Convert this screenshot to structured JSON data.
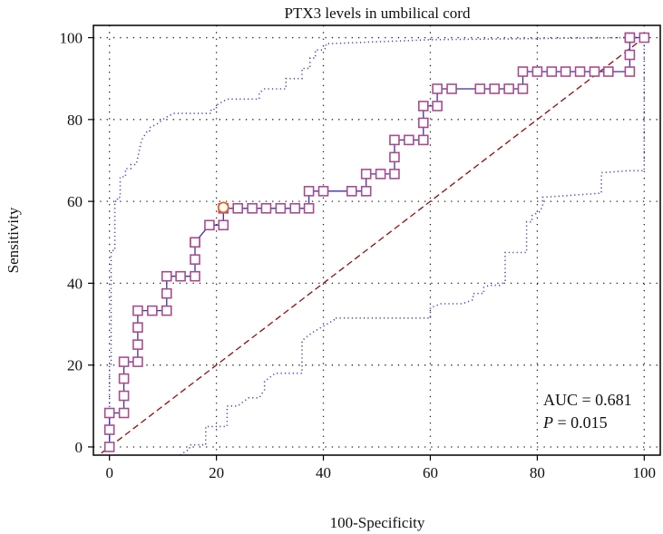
{
  "chart_data": {
    "type": "line",
    "title": "PTX3 levels in umbilical cord",
    "xlabel": "100-Specificity",
    "ylabel": "Sensitivity",
    "xlim": [
      -3,
      103
    ],
    "ylim": [
      -2,
      103
    ],
    "xticks": [
      0,
      20,
      40,
      60,
      80,
      100
    ],
    "yticks": [
      0,
      20,
      40,
      60,
      80,
      100
    ],
    "grid": true,
    "annotations": {
      "auc": "AUC = 0.681",
      "p_label": "P",
      "p_value": " = 0.015"
    },
    "optimal_point": [
      21.3,
      58.5
    ],
    "series": [
      {
        "role": "roc",
        "color": "#3b2fa0",
        "marker_color": "#a64d8c",
        "x": [
          0,
          0,
          0,
          2.7,
          2.7,
          2.7,
          2.7,
          5.3,
          5.3,
          5.3,
          5.3,
          8,
          10.7,
          10.7,
          10.7,
          13.3,
          16,
          16,
          16,
          16,
          18.7,
          21.3,
          21.3,
          24,
          26.7,
          29.3,
          32,
          34.7,
          37.3,
          37.3,
          40,
          45.3,
          48,
          48,
          50.7,
          53.3,
          53.3,
          53.3,
          56,
          58.7,
          58.7,
          58.7,
          61.3,
          61.3,
          64,
          69.3,
          72,
          74.7,
          77.3,
          77.3,
          80,
          82.7,
          85.3,
          88,
          90.7,
          93.3,
          97.3,
          97.3,
          97.3,
          97.3,
          100
        ],
        "y": [
          0,
          4.2,
          8.3,
          8.3,
          12.5,
          16.7,
          20.8,
          20.8,
          25,
          29.2,
          33.3,
          33.3,
          33.3,
          37.5,
          41.7,
          41.7,
          41.7,
          45.8,
          50,
          50,
          54.2,
          54.2,
          58.3,
          58.3,
          58.3,
          58.3,
          58.3,
          58.3,
          58.3,
          62.5,
          62.5,
          62.5,
          62.5,
          66.7,
          66.7,
          66.7,
          70.8,
          75,
          75,
          75,
          79.2,
          83.3,
          83.3,
          87.5,
          87.5,
          87.5,
          87.5,
          87.5,
          87.5,
          91.7,
          91.7,
          91.7,
          91.7,
          91.7,
          91.7,
          91.7,
          91.7,
          95.8,
          100,
          100,
          100
        ]
      },
      {
        "role": "ci-upper",
        "color": "#4a4ab0",
        "x": [
          0,
          0,
          0.3,
          0.3,
          1,
          1,
          1.5,
          1.5,
          2,
          2,
          3,
          3,
          4,
          4,
          5,
          6,
          7,
          7.5,
          7.5,
          9,
          10.5,
          12,
          19,
          19,
          20,
          20,
          22,
          28,
          28,
          29,
          33,
          33,
          36,
          36,
          37.5,
          37.5,
          38.5,
          38.5,
          40,
          40.5,
          40.5,
          60,
          97,
          100
        ],
        "y": [
          0,
          20,
          20,
          48,
          48,
          60,
          60,
          61,
          61,
          66,
          66,
          68,
          68,
          69,
          69,
          75,
          77,
          77,
          78,
          79,
          80.5,
          81.5,
          81.5,
          82.5,
          82.5,
          83.5,
          85,
          85,
          86.5,
          87.5,
          87.5,
          90,
          90,
          92.5,
          92.5,
          95,
          95,
          97,
          97,
          97.5,
          98.5,
          99.5,
          100,
          100
        ]
      },
      {
        "role": "ci-lower",
        "color": "#4a4ab0",
        "x": [
          0,
          12,
          15,
          15,
          17,
          18,
          18,
          20,
          22,
          22,
          24,
          26,
          28,
          29,
          29,
          31,
          35,
          36,
          36,
          38,
          42,
          42,
          60,
          60,
          62,
          66,
          68,
          68,
          70,
          70,
          71,
          73,
          74,
          74,
          75,
          77,
          78,
          78,
          79,
          79,
          80.5,
          81,
          81,
          92,
          92,
          97,
          100,
          100
        ],
        "y": [
          -3,
          -3,
          -0.5,
          0.5,
          0.5,
          0.5,
          5,
          5,
          5,
          10,
          10,
          12,
          12,
          14,
          16,
          18,
          18,
          18,
          26,
          28,
          31,
          31.5,
          31.5,
          34,
          35,
          35,
          36,
          37.5,
          37.5,
          39,
          39.5,
          39.5,
          40.5,
          47.5,
          47.5,
          47.5,
          47.5,
          55,
          55,
          56.5,
          57.5,
          59,
          61,
          62,
          67,
          67.5,
          67.5,
          100
        ]
      },
      {
        "role": "reference",
        "color": "#8b1a1a",
        "x": [
          -3,
          100
        ],
        "y": [
          -3,
          100
        ]
      }
    ]
  }
}
